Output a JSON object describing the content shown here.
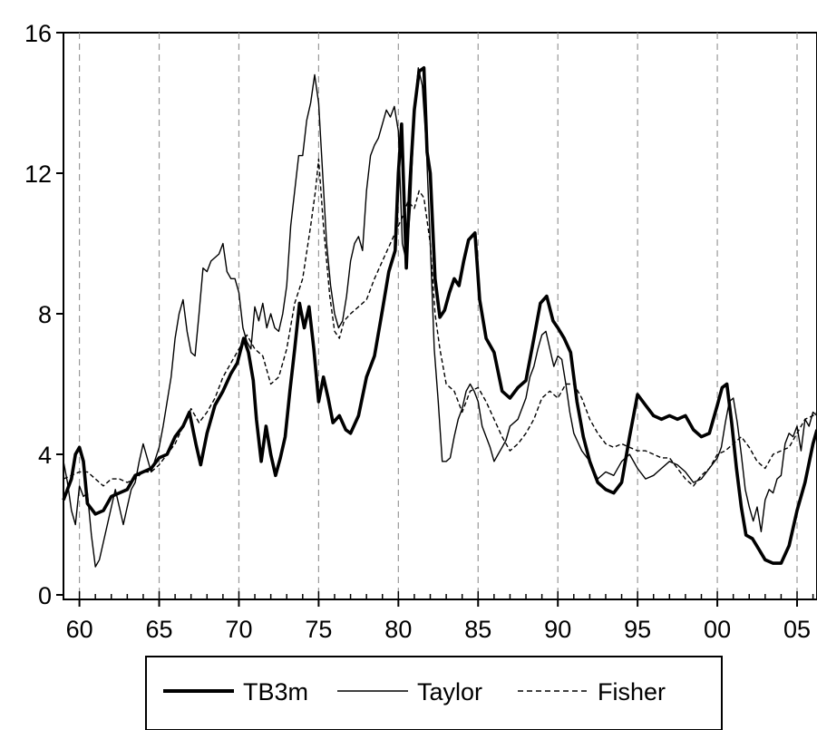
{
  "chart_data": {
    "type": "line",
    "title": "",
    "xlabel": "",
    "ylabel": "",
    "xlim": [
      1959.0,
      2006.25
    ],
    "ylim": [
      0,
      16
    ],
    "y_ticks": [
      0,
      4,
      8,
      12,
      16
    ],
    "y_tick_labels": [
      "0",
      "4",
      "8",
      "12",
      "16"
    ],
    "x_ticks": [
      1960,
      1965,
      1970,
      1975,
      1980,
      1985,
      1990,
      1995,
      2000,
      2005
    ],
    "x_tick_labels": [
      "60",
      "65",
      "70",
      "75",
      "80",
      "85",
      "90",
      "95",
      "00",
      "05"
    ],
    "vertical_gridlines": "dashed at each labelled year",
    "legend_position": "bottom-center",
    "series": [
      {
        "name": "TB3m",
        "style": "thick-solid",
        "color": "#000000",
        "x": [
          1959.0,
          1959.5,
          1959.75,
          1960.0,
          1960.25,
          1960.5,
          1961.0,
          1961.5,
          1962.0,
          1962.5,
          1963.0,
          1963.5,
          1964.0,
          1964.5,
          1965.0,
          1965.5,
          1966.0,
          1966.5,
          1966.9,
          1967.3,
          1967.6,
          1968.0,
          1968.5,
          1969.0,
          1969.5,
          1969.9,
          1970.3,
          1970.6,
          1970.9,
          1971.1,
          1971.4,
          1971.7,
          1972.0,
          1972.3,
          1972.6,
          1972.9,
          1973.2,
          1973.5,
          1973.8,
          1974.1,
          1974.4,
          1974.7,
          1975.0,
          1975.3,
          1975.6,
          1975.9,
          1976.3,
          1976.7,
          1977.0,
          1977.5,
          1978.0,
          1978.5,
          1979.0,
          1979.4,
          1979.8,
          1980.0,
          1980.2,
          1980.5,
          1980.7,
          1981.0,
          1981.3,
          1981.6,
          1981.8,
          1982.0,
          1982.3,
          1982.6,
          1982.9,
          1983.2,
          1983.5,
          1983.8,
          1984.1,
          1984.4,
          1984.8,
          1985.1,
          1985.5,
          1986.0,
          1986.5,
          1987.0,
          1987.5,
          1988.0,
          1988.5,
          1988.9,
          1989.3,
          1989.7,
          1990.0,
          1990.4,
          1990.8,
          1991.2,
          1991.6,
          1992.0,
          1992.5,
          1993.0,
          1993.5,
          1994.0,
          1994.5,
          1995.0,
          1995.5,
          1996.0,
          1996.5,
          1997.0,
          1997.5,
          1998.0,
          1998.5,
          1999.0,
          1999.5,
          2000.0,
          2000.3,
          2000.6,
          2000.9,
          2001.2,
          2001.5,
          2001.8,
          2002.2,
          2002.6,
          2003.0,
          2003.5,
          2004.0,
          2004.5,
          2005.0,
          2005.5,
          2006.0,
          2006.25
        ],
        "values": [
          2.7,
          3.3,
          4.0,
          4.2,
          3.8,
          2.6,
          2.3,
          2.4,
          2.8,
          2.9,
          3.0,
          3.4,
          3.5,
          3.6,
          3.9,
          4.0,
          4.5,
          4.8,
          5.2,
          4.3,
          3.7,
          4.6,
          5.4,
          5.8,
          6.3,
          6.6,
          7.3,
          6.9,
          6.1,
          5.0,
          3.8,
          4.8,
          4.0,
          3.4,
          3.9,
          4.5,
          5.8,
          7.0,
          8.3,
          7.6,
          8.2,
          7.0,
          5.5,
          6.2,
          5.6,
          4.9,
          5.1,
          4.7,
          4.6,
          5.1,
          6.2,
          6.8,
          8.1,
          9.2,
          9.8,
          12.0,
          13.4,
          9.3,
          11.5,
          13.8,
          14.9,
          15.0,
          12.6,
          12.0,
          9.0,
          7.9,
          8.1,
          8.6,
          9.0,
          8.8,
          9.5,
          10.1,
          10.3,
          8.4,
          7.3,
          6.9,
          5.8,
          5.6,
          5.9,
          6.1,
          7.3,
          8.3,
          8.5,
          7.8,
          7.6,
          7.3,
          6.9,
          5.5,
          4.5,
          3.8,
          3.2,
          3.0,
          2.9,
          3.2,
          4.5,
          5.7,
          5.4,
          5.1,
          5.0,
          5.1,
          5.0,
          5.1,
          4.7,
          4.5,
          4.6,
          5.4,
          5.9,
          6.0,
          4.9,
          3.6,
          2.5,
          1.7,
          1.6,
          1.3,
          1.0,
          0.9,
          0.9,
          1.4,
          2.4,
          3.2,
          4.3,
          4.7
        ]
      },
      {
        "name": "Taylor",
        "style": "thin-solid",
        "color": "#000000",
        "x": [
          1959.0,
          1959.25,
          1959.5,
          1959.75,
          1960.0,
          1960.25,
          1960.5,
          1960.75,
          1961.0,
          1961.25,
          1961.5,
          1961.75,
          1962.0,
          1962.25,
          1962.5,
          1962.75,
          1963.0,
          1963.25,
          1963.5,
          1963.75,
          1964.0,
          1964.5,
          1965.0,
          1965.25,
          1965.5,
          1965.75,
          1966.0,
          1966.25,
          1966.5,
          1966.75,
          1967.0,
          1967.25,
          1967.5,
          1967.75,
          1968.0,
          1968.25,
          1968.5,
          1968.75,
          1969.0,
          1969.25,
          1969.5,
          1969.75,
          1970.0,
          1970.25,
          1970.5,
          1970.75,
          1971.0,
          1971.25,
          1971.5,
          1971.75,
          1972.0,
          1972.25,
          1972.5,
          1972.75,
          1973.0,
          1973.25,
          1973.5,
          1973.75,
          1974.0,
          1974.25,
          1974.5,
          1974.75,
          1975.0,
          1975.25,
          1975.5,
          1975.75,
          1976.0,
          1976.25,
          1976.5,
          1976.75,
          1977.0,
          1977.25,
          1977.5,
          1977.75,
          1978.0,
          1978.25,
          1978.5,
          1978.75,
          1979.0,
          1979.25,
          1979.5,
          1979.75,
          1980.0,
          1980.25,
          1980.5,
          1980.75,
          1981.0,
          1981.25,
          1981.5,
          1981.75,
          1982.0,
          1982.25,
          1982.5,
          1982.75,
          1983.0,
          1983.25,
          1983.5,
          1983.75,
          1984.0,
          1984.25,
          1984.5,
          1984.75,
          1985.0,
          1985.25,
          1985.5,
          1985.75,
          1986.0,
          1986.25,
          1986.5,
          1986.75,
          1987.0,
          1987.5,
          1988.0,
          1988.25,
          1988.5,
          1988.75,
          1989.0,
          1989.25,
          1989.5,
          1989.75,
          1990.0,
          1990.25,
          1990.5,
          1990.75,
          1991.0,
          1991.5,
          1992.0,
          1992.5,
          1993.0,
          1993.5,
          1994.0,
          1994.5,
          1995.0,
          1995.5,
          1996.0,
          1996.5,
          1997.0,
          1997.5,
          1998.0,
          1998.5,
          1999.0,
          1999.5,
          2000.0,
          2000.25,
          2000.5,
          2000.75,
          2001.0,
          2001.25,
          2001.5,
          2001.75,
          2002.0,
          2002.25,
          2002.5,
          2002.75,
          2003.0,
          2003.25,
          2003.5,
          2003.75,
          2004.0,
          2004.25,
          2004.5,
          2004.75,
          2005.0,
          2005.25,
          2005.5,
          2005.75,
          2006.0,
          2006.25
        ],
        "values": [
          3.8,
          3.2,
          2.4,
          2.0,
          3.1,
          2.8,
          2.9,
          1.7,
          0.8,
          1.0,
          1.5,
          2.0,
          2.5,
          3.0,
          2.5,
          2.0,
          2.5,
          3.0,
          3.2,
          3.8,
          4.3,
          3.5,
          4.2,
          4.8,
          5.5,
          6.2,
          7.3,
          8.0,
          8.4,
          7.5,
          6.9,
          6.8,
          8.0,
          9.3,
          9.2,
          9.5,
          9.6,
          9.7,
          10.0,
          9.2,
          9.0,
          9.0,
          8.6,
          7.6,
          7.2,
          7.0,
          8.2,
          7.8,
          8.3,
          7.6,
          8.0,
          7.6,
          7.5,
          8.0,
          8.8,
          10.5,
          11.5,
          12.5,
          12.5,
          13.5,
          14.0,
          14.8,
          14.0,
          12.0,
          10.0,
          8.8,
          8.0,
          7.6,
          7.8,
          8.5,
          9.5,
          10.0,
          10.2,
          9.8,
          11.5,
          12.5,
          12.8,
          13.0,
          13.4,
          13.8,
          13.6,
          13.9,
          13.2,
          10.0,
          9.5,
          11.0,
          13.8,
          15.0,
          14.5,
          12.8,
          10.0,
          7.0,
          5.5,
          3.8,
          3.8,
          3.9,
          4.5,
          5.0,
          5.3,
          5.8,
          6.0,
          5.8,
          5.5,
          4.8,
          4.5,
          4.2,
          3.8,
          4.0,
          4.2,
          4.4,
          4.8,
          5.0,
          5.6,
          6.2,
          6.5,
          7.0,
          7.4,
          7.5,
          7.0,
          6.5,
          6.8,
          6.7,
          6.0,
          5.2,
          4.6,
          4.1,
          3.8,
          3.3,
          3.5,
          3.4,
          3.8,
          4.0,
          3.6,
          3.3,
          3.4,
          3.6,
          3.8,
          3.7,
          3.5,
          3.2,
          3.3,
          3.6,
          3.9,
          4.2,
          4.9,
          5.5,
          5.6,
          4.9,
          4.0,
          3.0,
          2.5,
          2.1,
          2.5,
          1.8,
          2.7,
          3.0,
          2.9,
          3.3,
          3.4,
          4.3,
          4.6,
          4.5,
          4.8,
          4.1,
          5.0,
          4.8,
          5.2,
          5.1
        ]
      },
      {
        "name": "Fisher",
        "style": "dashed",
        "color": "#000000",
        "x": [
          1959.0,
          1959.5,
          1960.0,
          1960.5,
          1961.0,
          1961.5,
          1962.0,
          1962.5,
          1963.0,
          1963.5,
          1964.0,
          1964.5,
          1965.0,
          1965.5,
          1966.0,
          1966.5,
          1967.0,
          1967.5,
          1968.0,
          1968.5,
          1969.0,
          1969.5,
          1970.0,
          1970.5,
          1971.0,
          1971.5,
          1972.0,
          1972.5,
          1973.0,
          1973.5,
          1974.0,
          1974.5,
          1974.8,
          1975.0,
          1975.3,
          1975.7,
          1976.0,
          1976.3,
          1976.6,
          1977.0,
          1977.5,
          1978.0,
          1978.5,
          1979.0,
          1979.5,
          1980.0,
          1980.3,
          1980.6,
          1981.0,
          1981.3,
          1981.6,
          1982.0,
          1982.3,
          1982.6,
          1983.0,
          1983.5,
          1984.0,
          1984.5,
          1985.0,
          1985.5,
          1986.0,
          1986.5,
          1987.0,
          1987.5,
          1988.0,
          1988.5,
          1989.0,
          1989.5,
          1990.0,
          1990.5,
          1991.0,
          1991.5,
          1992.0,
          1992.5,
          1993.0,
          1993.5,
          1994.0,
          1994.5,
          1995.0,
          1995.5,
          1996.0,
          1996.5,
          1997.0,
          1997.5,
          1998.0,
          1998.5,
          1999.0,
          1999.5,
          2000.0,
          2000.5,
          2001.0,
          2001.5,
          2002.0,
          2002.5,
          2003.0,
          2003.5,
          2004.0,
          2004.5,
          2005.0,
          2005.5,
          2006.0,
          2006.25
        ],
        "values": [
          3.3,
          3.4,
          3.5,
          3.5,
          3.3,
          3.1,
          3.3,
          3.3,
          3.2,
          3.3,
          3.5,
          3.5,
          3.7,
          4.0,
          4.3,
          4.8,
          5.3,
          4.9,
          5.2,
          5.6,
          6.2,
          6.6,
          7.0,
          7.4,
          7.0,
          6.8,
          6.0,
          6.2,
          7.0,
          8.3,
          9.0,
          10.5,
          11.5,
          12.4,
          10.5,
          8.5,
          7.5,
          7.3,
          7.8,
          8.0,
          8.2,
          8.4,
          9.0,
          9.5,
          10.0,
          10.5,
          10.8,
          11.2,
          11.0,
          11.5,
          11.3,
          10.0,
          8.0,
          7.0,
          6.0,
          5.8,
          5.2,
          5.8,
          5.9,
          5.5,
          5.0,
          4.5,
          4.1,
          4.3,
          4.6,
          5.0,
          5.6,
          5.8,
          5.6,
          6.0,
          6.0,
          5.6,
          5.0,
          4.6,
          4.3,
          4.2,
          4.3,
          4.2,
          4.1,
          4.1,
          4.0,
          3.9,
          3.9,
          3.6,
          3.3,
          3.1,
          3.4,
          3.6,
          4.0,
          4.1,
          4.3,
          4.5,
          4.2,
          3.8,
          3.6,
          4.0,
          4.1,
          4.2,
          4.6,
          5.0,
          5.1,
          5.2
        ]
      }
    ]
  },
  "legend": {
    "items": [
      {
        "label": "TB3m"
      },
      {
        "label": "Taylor"
      },
      {
        "label": "Fisher"
      }
    ]
  }
}
